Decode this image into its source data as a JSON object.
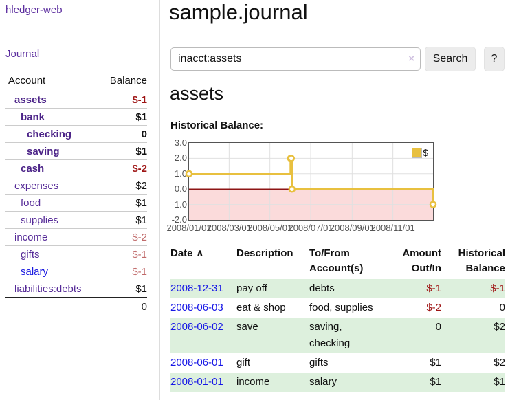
{
  "sidebar": {
    "brand": "hledger-web",
    "journal_link": "Journal",
    "accounts_table": {
      "account_header": "Account",
      "balance_header": "Balance",
      "rows": [
        {
          "name": "assets",
          "level": 1,
          "bold": true,
          "balance": "$-1"
        },
        {
          "name": "bank",
          "level": 2,
          "bold": true,
          "balance": "$1"
        },
        {
          "name": "checking",
          "level": 3,
          "bold": true,
          "balance": "0"
        },
        {
          "name": "saving",
          "level": 3,
          "bold": true,
          "balance": "$1"
        },
        {
          "name": "cash",
          "level": 2,
          "bold": true,
          "balance": "$-2"
        },
        {
          "name": "expenses",
          "level": 1,
          "bold": false,
          "balance": "$2"
        },
        {
          "name": "food",
          "level": 2,
          "bold": false,
          "balance": "$1"
        },
        {
          "name": "supplies",
          "level": 2,
          "bold": false,
          "balance": "$1"
        },
        {
          "name": "income",
          "level": 1,
          "bold": false,
          "balance": "$-2"
        },
        {
          "name": "gifts",
          "level": 2,
          "bold": false,
          "balance": "$-1"
        },
        {
          "name": "salary",
          "level": 2,
          "bold": false,
          "unvisited": true,
          "balance": "$-1"
        },
        {
          "name": "liabilities:debts",
          "level": 1,
          "bold": false,
          "balance": "$1"
        }
      ],
      "total": "0"
    }
  },
  "header": {
    "title": "sample.journal"
  },
  "search": {
    "value": "inacct:assets",
    "clear_icon": "×",
    "button": "Search",
    "help_button": "?"
  },
  "account_page": {
    "title": "assets",
    "chart_label": "Historical Balance:"
  },
  "chart_data": {
    "type": "line",
    "style": "step",
    "series": [
      {
        "name": "$",
        "color": "#e8c03f",
        "points": [
          [
            "2008-01-01",
            1
          ],
          [
            "2008-06-01",
            2
          ],
          [
            "2008-06-02",
            2
          ],
          [
            "2008-06-03",
            0
          ],
          [
            "2008-12-31",
            -1
          ]
        ]
      }
    ],
    "ylim": [
      -2,
      3
    ],
    "yticks": [
      "3.0",
      "2.0",
      "1.0",
      "0.0",
      "-1.0",
      "-2.0"
    ],
    "xticks": [
      "2008/01/01",
      "2008/03/01",
      "2008/05/01",
      "2008/07/01",
      "2008/09/01",
      "2008/11/01"
    ],
    "grid": true,
    "grid_color": "#e0e0e0",
    "border_color": "#545454",
    "negative_region": {
      "below": 0,
      "fill": "#fbdbdb",
      "line": "#8e1515"
    },
    "legend": {
      "label": "$",
      "position": "top-right"
    }
  },
  "register_table": {
    "columns": [
      "Date",
      "Description",
      "To/From Account(s)",
      "Amount Out/In",
      "Historical Balance"
    ],
    "sort_icon": "∧",
    "rows": [
      {
        "date": "2008-12-31",
        "description": "pay off",
        "accounts": "debts",
        "amount": "$-1",
        "balance": "$-1"
      },
      {
        "date": "2008-06-03",
        "description": "eat & shop",
        "accounts": "food, supplies",
        "amount": "$-2",
        "balance": "0"
      },
      {
        "date": "2008-06-02",
        "description": "save",
        "accounts": "saving, checking",
        "amount": "0",
        "balance": "$2"
      },
      {
        "date": "2008-06-01",
        "description": "gift",
        "accounts": "gifts",
        "amount": "$1",
        "balance": "$2"
      },
      {
        "date": "2008-01-01",
        "description": "income",
        "accounts": "salary",
        "amount": "$1",
        "balance": "$1"
      }
    ]
  },
  "colors": {
    "link_purple": "#5b2d9e",
    "link_blue": "#1717e6",
    "negative_strong": "#9e1414",
    "negative_muted": "#c06a6a",
    "row_stripe_green": "#ddf0dd",
    "chart_line_gold": "#e8c03f",
    "chart_negative_pink": "#fbdbdb",
    "chart_zero_line_red": "#8e1515"
  }
}
